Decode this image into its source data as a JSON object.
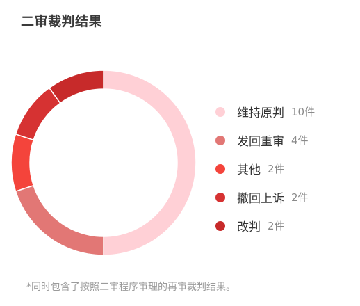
{
  "title": "二审裁判结果",
  "footnote": "*同时包含了按照二审程序审理的再审裁判结果。",
  "chart_data": {
    "type": "pie",
    "title": "二审裁判结果",
    "series": [
      {
        "name": "维持原判",
        "value": 10,
        "count_label": "10件",
        "color": "#ffd0d6"
      },
      {
        "name": "发回重审",
        "value": 4,
        "count_label": "4件",
        "color": "#e27775"
      },
      {
        "name": "其他",
        "value": 2,
        "count_label": "2件",
        "color": "#f4443b"
      },
      {
        "name": "撤回上诉",
        "value": 2,
        "count_label": "2件",
        "color": "#d63232"
      },
      {
        "name": "改判",
        "value": 2,
        "count_label": "2件",
        "color": "#c72a2a"
      }
    ],
    "legend_position": "right"
  }
}
